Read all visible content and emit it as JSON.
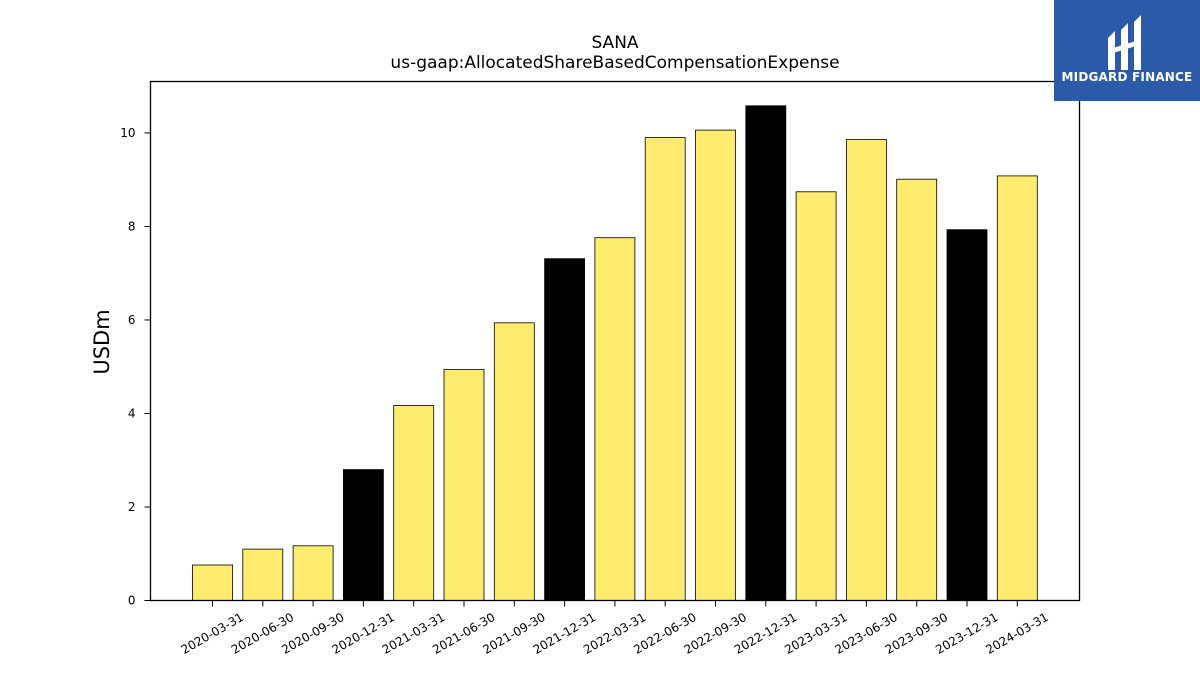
{
  "chart_data": {
    "type": "bar",
    "title": "SANA",
    "subtitle": "us-gaap:AllocatedShareBasedCompensationExpense",
    "xlabel": "",
    "ylabel": "USDm",
    "ylim": [
      0,
      11.1
    ],
    "yticks": [
      0,
      2,
      4,
      6,
      8,
      10
    ],
    "grid": false,
    "categories": [
      "2020-03-31",
      "2020-06-30",
      "2020-09-30",
      "2020-12-31",
      "2021-03-31",
      "2021-06-30",
      "2021-09-30",
      "2021-12-31",
      "2022-03-31",
      "2022-06-30",
      "2022-09-30",
      "2022-12-31",
      "2023-03-31",
      "2023-06-30",
      "2023-09-30",
      "2023-12-31",
      "2024-03-31"
    ],
    "values": [
      0.76,
      1.1,
      1.17,
      2.8,
      4.17,
      4.94,
      5.94,
      7.31,
      7.76,
      9.9,
      10.06,
      10.58,
      8.74,
      9.86,
      9.01,
      7.93,
      9.08
    ],
    "bar_colors": [
      "#ffec6e",
      "#ffec6e",
      "#ffec6e",
      "#000000",
      "#ffec6e",
      "#ffec6e",
      "#ffec6e",
      "#000000",
      "#ffec6e",
      "#ffec6e",
      "#ffec6e",
      "#000000",
      "#ffec6e",
      "#ffec6e",
      "#ffec6e",
      "#000000",
      "#ffec6e"
    ]
  },
  "logo": {
    "text": "MIDGARD FINANCE",
    "background": "#2a5aa8"
  }
}
